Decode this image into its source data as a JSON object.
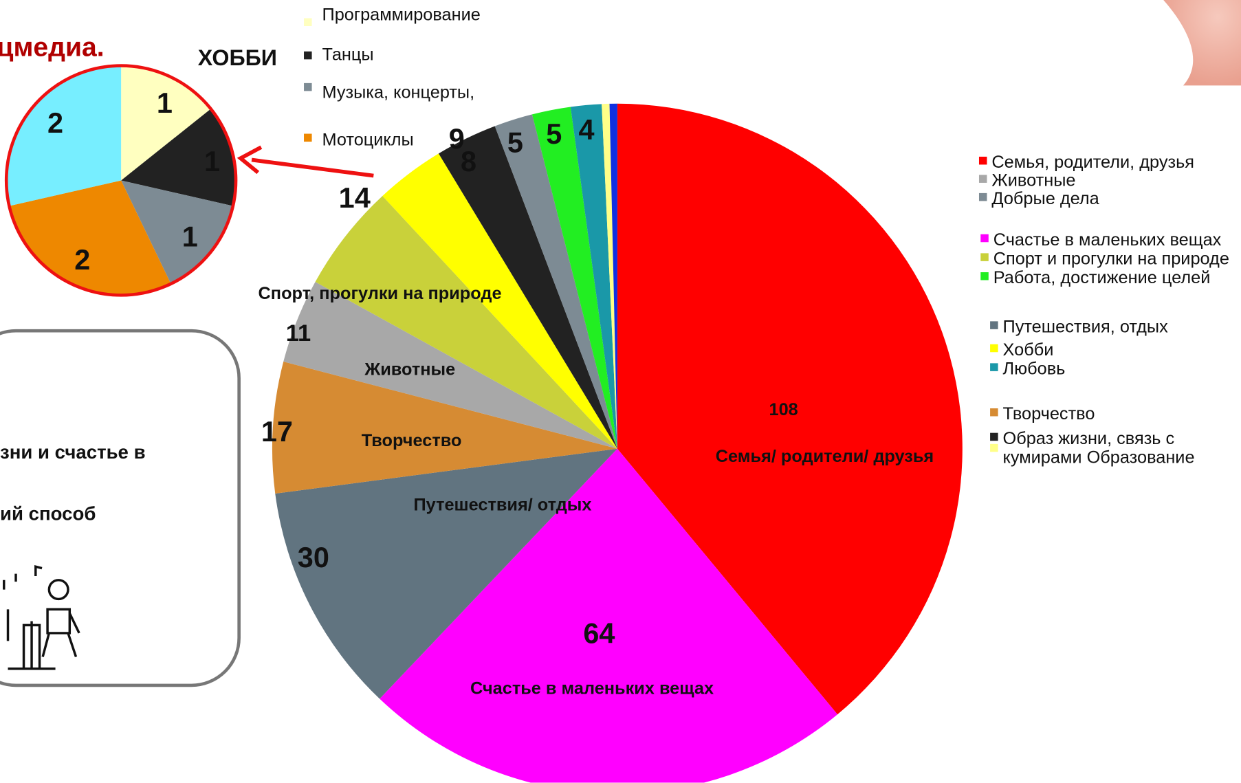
{
  "texts": {
    "heading": "цмедиа.",
    "box_line_1": "зни и счастье в",
    "box_line_2": "ий способ"
  },
  "chart_data": [
    {
      "type": "pie",
      "categories": [
        "Семья/ родители/ друзья",
        "Счастье в маленьких вещах",
        "Путешествия/ отдых",
        "Творчество",
        "Животные",
        "Спорт, прогулки на природе",
        null,
        null,
        null,
        null,
        null,
        null,
        null
      ],
      "values": [
        108,
        64,
        30,
        17,
        11,
        14,
        9,
        8,
        5,
        5,
        4,
        1,
        1
      ],
      "colors": [
        "#ff0000",
        "#ff00ff",
        "#617480",
        "#d68b33",
        "#a8a8a8",
        "#c9d13a",
        "#ffff00",
        "#222222",
        "#7d8b94",
        "#22ee22",
        "#1a98a8",
        "#ffff88",
        "#1030e0"
      ],
      "legend": [
        {
          "name": "Семья, родители, друзья",
          "color": "#ff0000"
        },
        {
          "name": "Животные",
          "color": "#a8a8a8"
        },
        {
          "name": "Добрые дела",
          "color": "#7d8b94"
        },
        {
          "name": "Счастье в маленьких вещах",
          "color": "#ff00ff"
        },
        {
          "name": "Спорт и прогулки на природе",
          "color": "#c9d13a"
        },
        {
          "name": "Работа, достижение целей",
          "color": "#22ee22"
        },
        {
          "name": "Путешествия, отдых",
          "color": "#617480"
        },
        {
          "name": "Хобби",
          "color": "#ffff00"
        },
        {
          "name": "Любовь",
          "color": "#1a98a8"
        },
        {
          "name": "Творчество",
          "color": "#d68b33"
        },
        {
          "name": "Образ жизни, связь с кумирами Образование",
          "color": [
            "#222222",
            "#ffff88"
          ]
        }
      ]
    },
    {
      "type": "pie",
      "title": "ХОББИ",
      "categories": [
        "Программирование",
        "Танцы",
        "Музыка, концерты,",
        "Мотоциклы",
        null
      ],
      "values": [
        1,
        1,
        1,
        2,
        2
      ],
      "colors": [
        "#ffffc0",
        "#222222",
        "#7d8b94",
        "#ee8800",
        "#77eeff"
      ],
      "outline": "#ee1111"
    }
  ]
}
